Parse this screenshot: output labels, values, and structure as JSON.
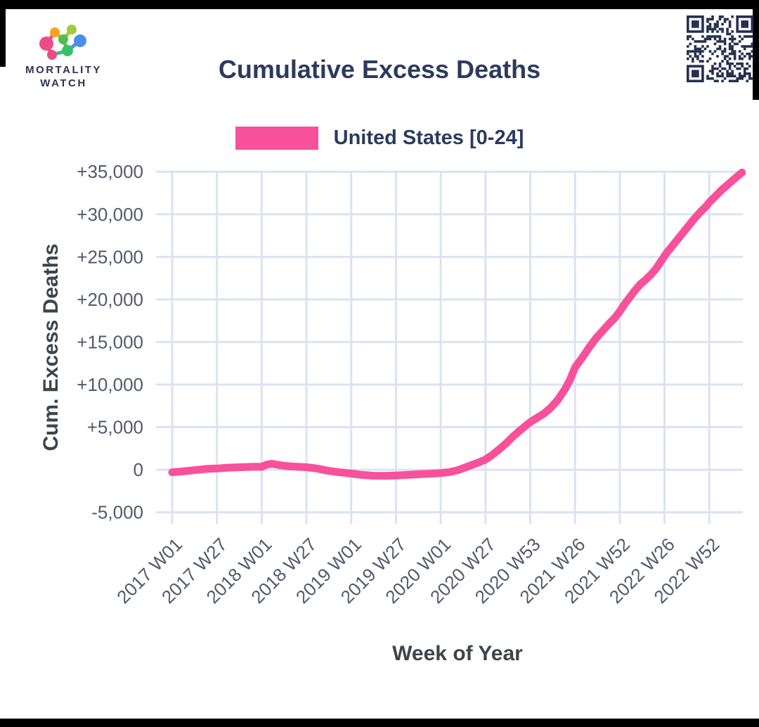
{
  "logo": {
    "line1": "MORTALITY",
    "line2": "WATCH"
  },
  "header": {
    "title": "Cumulative Excess Deaths"
  },
  "legend": {
    "series_label": "United States [0-24]",
    "swatch_color": "#F8509B"
  },
  "colors": {
    "line": "#F8509B",
    "grid": "#DBE2F3",
    "tick_label": "#525A6B",
    "axis_title": "#3F434C",
    "title": "#2C3A5E",
    "qr": "#232D4E",
    "frame": "#000000"
  },
  "chart_data": {
    "type": "line",
    "title": "Cumulative Excess Deaths",
    "xlabel": "Week of Year",
    "ylabel": "Cum. Excess Deaths",
    "grid": true,
    "legend_position": "top",
    "ylim": [
      -6350,
      35100
    ],
    "xlim_weeks": [
      0,
      331.5
    ],
    "y_ticks": [
      {
        "value": 35000,
        "label": "+35,000"
      },
      {
        "value": 30000,
        "label": "+30,000"
      },
      {
        "value": 25000,
        "label": "+25,000"
      },
      {
        "value": 20000,
        "label": "+20,000"
      },
      {
        "value": 15000,
        "label": "+15,000"
      },
      {
        "value": 10000,
        "label": "+10,000"
      },
      {
        "value": 5000,
        "label": "+5,000"
      },
      {
        "value": 0,
        "label": "0"
      },
      {
        "value": -5000,
        "label": "-5,000"
      }
    ],
    "x_ticks": [
      {
        "week": 0,
        "label": "2017 W01"
      },
      {
        "week": 26,
        "label": "2017 W27"
      },
      {
        "week": 52,
        "label": "2018 W01"
      },
      {
        "week": 78,
        "label": "2018 W27"
      },
      {
        "week": 104,
        "label": "2019 W01"
      },
      {
        "week": 130,
        "label": "2019 W27"
      },
      {
        "week": 156,
        "label": "2020 W01"
      },
      {
        "week": 182,
        "label": "2020 W27"
      },
      {
        "week": 208,
        "label": "2020 W53"
      },
      {
        "week": 234,
        "label": "2021 W26"
      },
      {
        "week": 260,
        "label": "2021 W52"
      },
      {
        "week": 286,
        "label": "2022 W26"
      },
      {
        "week": 312,
        "label": "2022 W52"
      }
    ],
    "series": [
      {
        "name": "United States [0-24]",
        "color": "#F8509B",
        "points": [
          [
            0,
            -300
          ],
          [
            6,
            -200
          ],
          [
            13,
            -50
          ],
          [
            20,
            100
          ],
          [
            26,
            150
          ],
          [
            33,
            250
          ],
          [
            40,
            300
          ],
          [
            46,
            350
          ],
          [
            52,
            350
          ],
          [
            55,
            600
          ],
          [
            58,
            700
          ],
          [
            62,
            550
          ],
          [
            68,
            400
          ],
          [
            73,
            350
          ],
          [
            78,
            300
          ],
          [
            84,
            150
          ],
          [
            90,
            -100
          ],
          [
            97,
            -300
          ],
          [
            104,
            -450
          ],
          [
            110,
            -600
          ],
          [
            117,
            -700
          ],
          [
            124,
            -720
          ],
          [
            130,
            -680
          ],
          [
            137,
            -600
          ],
          [
            144,
            -520
          ],
          [
            150,
            -470
          ],
          [
            156,
            -400
          ],
          [
            161,
            -280
          ],
          [
            166,
            -50
          ],
          [
            170,
            250
          ],
          [
            174,
            550
          ],
          [
            178,
            850
          ],
          [
            182,
            1200
          ],
          [
            186,
            1750
          ],
          [
            190,
            2400
          ],
          [
            194,
            3100
          ],
          [
            198,
            3900
          ],
          [
            202,
            4600
          ],
          [
            205,
            5100
          ],
          [
            208,
            5600
          ],
          [
            212,
            6100
          ],
          [
            216,
            6600
          ],
          [
            220,
            7300
          ],
          [
            224,
            8200
          ],
          [
            228,
            9400
          ],
          [
            231,
            10500
          ],
          [
            234,
            12000
          ],
          [
            238,
            13100
          ],
          [
            242,
            14300
          ],
          [
            246,
            15400
          ],
          [
            250,
            16300
          ],
          [
            254,
            17200
          ],
          [
            257,
            17800
          ],
          [
            260,
            18600
          ],
          [
            263,
            19500
          ],
          [
            266,
            20300
          ],
          [
            269,
            21100
          ],
          [
            272,
            21800
          ],
          [
            275,
            22300
          ],
          [
            278,
            22900
          ],
          [
            281,
            23600
          ],
          [
            284,
            24500
          ],
          [
            287,
            25400
          ],
          [
            291,
            26400
          ],
          [
            295,
            27400
          ],
          [
            299,
            28400
          ],
          [
            303,
            29400
          ],
          [
            307,
            30300
          ],
          [
            310,
            30900
          ],
          [
            312,
            31400
          ],
          [
            316,
            32200
          ],
          [
            320,
            33000
          ],
          [
            324,
            33700
          ],
          [
            328,
            34400
          ],
          [
            331,
            34900
          ]
        ]
      }
    ]
  }
}
